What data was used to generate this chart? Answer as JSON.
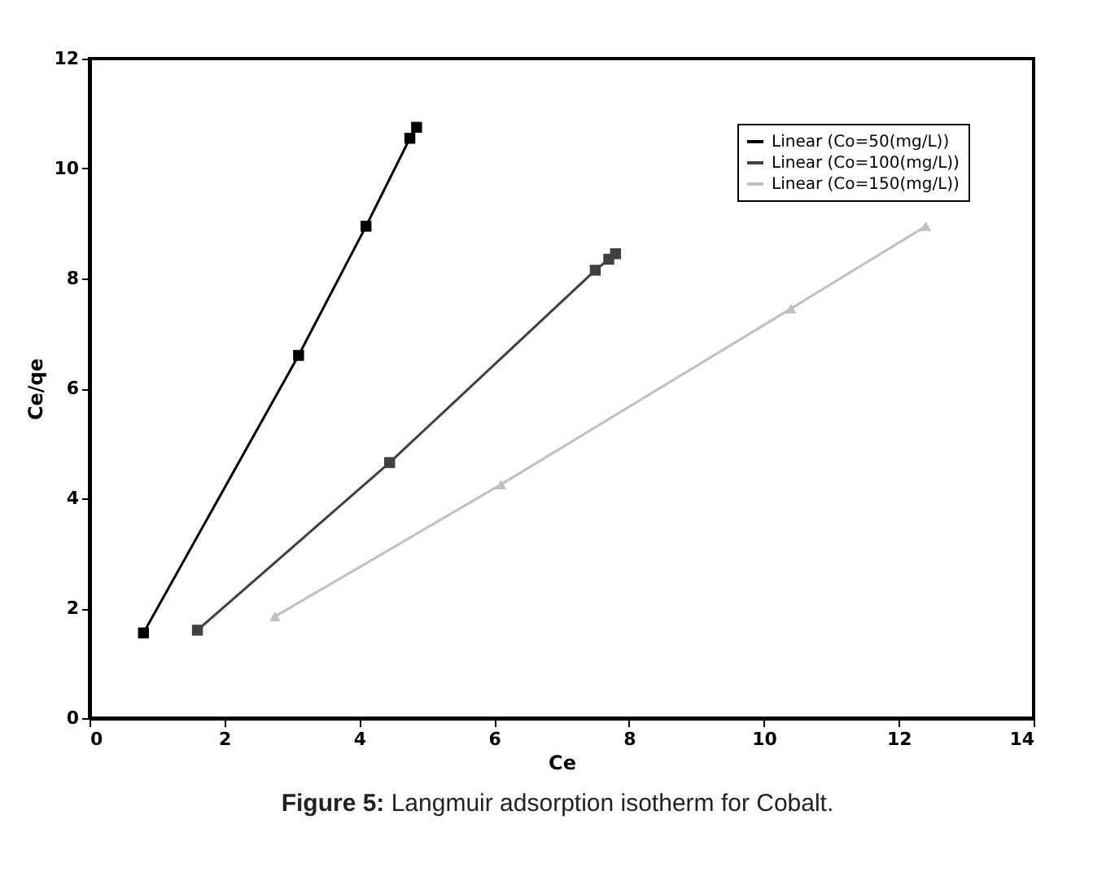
{
  "chart_data": {
    "type": "line",
    "xlabel": "Ce",
    "ylabel": "Ce/qe",
    "annotations": [
      "Figure 5: Langmuir adsorption isotherm for Cobalt."
    ],
    "xlim": [
      0,
      14
    ],
    "xticks": [
      0,
      2,
      4,
      6,
      8,
      10,
      12,
      14
    ],
    "ylim": [
      0,
      12
    ],
    "yticks": [
      0,
      2,
      4,
      6,
      8,
      10,
      12
    ],
    "grid": false,
    "legend": "top right",
    "series": [
      {
        "name": "Linear (Co=50(mg/L))",
        "color": "#000000",
        "marker": "square",
        "x": [
          0.8,
          3.1,
          4.1,
          4.75,
          4.85
        ],
        "values": [
          1.55,
          6.6,
          8.95,
          10.55,
          10.75
        ]
      },
      {
        "name": "Linear (Co=100(mg/L))",
        "color": "#404040",
        "marker": "square",
        "x": [
          1.6,
          4.45,
          7.5,
          7.7,
          7.8
        ],
        "values": [
          1.6,
          4.65,
          8.15,
          8.35,
          8.45
        ]
      },
      {
        "name": "Linear (Co=150(mg/L))",
        "color": "#c0c0c0",
        "marker": "triangle",
        "x": [
          2.75,
          6.1,
          10.4,
          12.4
        ],
        "values": [
          1.85,
          4.25,
          7.45,
          8.95
        ]
      }
    ]
  }
}
